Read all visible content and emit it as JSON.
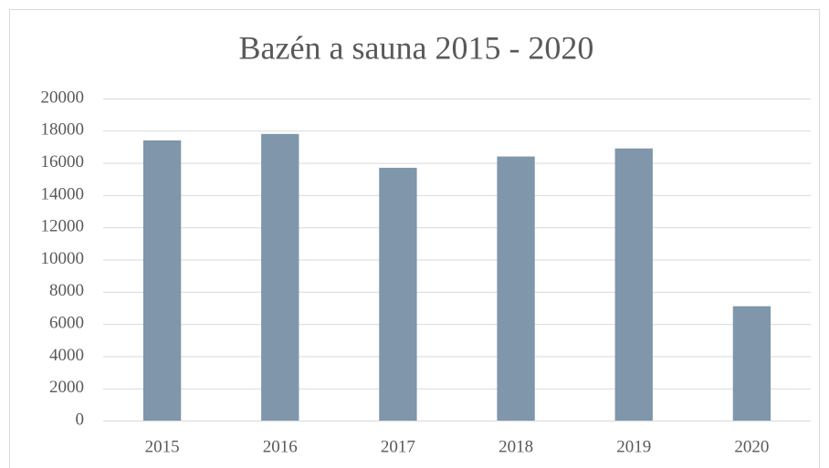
{
  "chart_data": {
    "type": "bar",
    "title": "Bazén a sauna 2015 - 2020",
    "categories": [
      "2015",
      "2016",
      "2017",
      "2018",
      "2019",
      "2020"
    ],
    "values": [
      17400,
      17800,
      15700,
      16400,
      16900,
      7100
    ],
    "color": "#7f96ab",
    "ylim": [
      0,
      20000
    ],
    "yticks": [
      0,
      2000,
      4000,
      6000,
      8000,
      10000,
      12000,
      14000,
      16000,
      18000,
      20000
    ],
    "grid": true
  }
}
